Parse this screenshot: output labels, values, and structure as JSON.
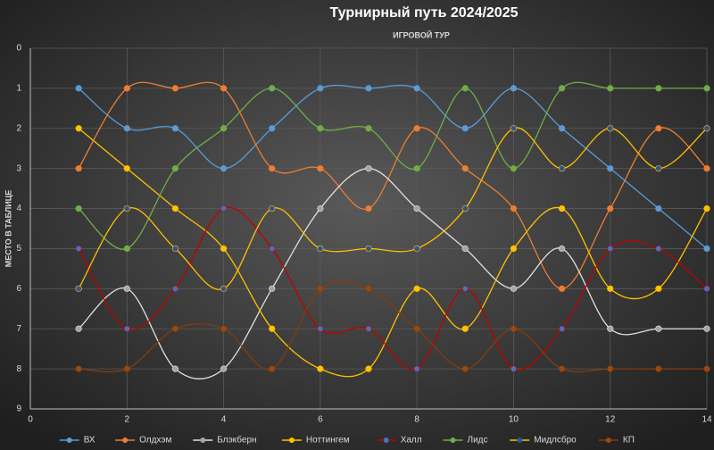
{
  "chart_data": {
    "type": "line",
    "title": "Турнирный путь 2024/2025",
    "x_label": "ИГРОВОЙ ТУР",
    "y_label": "МЕСТО В ТАБЛИЦЕ",
    "x": [
      1,
      2,
      3,
      4,
      5,
      6,
      7,
      8,
      9,
      10,
      11,
      12,
      13,
      14
    ],
    "xlim": [
      0,
      14
    ],
    "xticks": [
      0,
      2,
      4,
      6,
      8,
      10,
      12,
      14
    ],
    "ylim": [
      0,
      9
    ],
    "yticks": [
      0,
      1,
      2,
      3,
      4,
      5,
      6,
      7,
      8,
      9
    ],
    "y_reversed": true,
    "grid": true,
    "smooth": true,
    "legend": "bottom",
    "series": [
      {
        "name": "ВХ",
        "color": "#5b9bd5",
        "marker_color": "#5b9bd5",
        "values": [
          1,
          2,
          2,
          3,
          2,
          1,
          1,
          1,
          2,
          1,
          2,
          3,
          4,
          5
        ]
      },
      {
        "name": "Олдхэм",
        "color": "#ed7d31",
        "marker_color": "#ed7d31",
        "values": [
          3,
          1,
          1,
          1,
          3,
          3,
          4,
          2,
          3,
          4,
          6,
          4,
          2,
          3
        ]
      },
      {
        "name": "Блэкберн",
        "color": "#e0e0e0",
        "marker_color": "#a5a5a5",
        "values": [
          7,
          6,
          8,
          8,
          6,
          4,
          3,
          4,
          5,
          6,
          5,
          7,
          7,
          7
        ]
      },
      {
        "name": "Ноттингем",
        "color": "#ffc000",
        "marker_color": "#ffc000",
        "values": [
          2,
          3,
          4,
          5,
          7,
          8,
          8,
          6,
          7,
          5,
          4,
          6,
          6,
          4
        ]
      },
      {
        "name": "Халл",
        "color": "#c00000",
        "marker_color": "#4472c4",
        "values": [
          5,
          7,
          6,
          4,
          5,
          7,
          7,
          8,
          6,
          8,
          7,
          5,
          5,
          6
        ]
      },
      {
        "name": "Лидс",
        "color": "#70ad47",
        "marker_color": "#70ad47",
        "values": [
          4,
          5,
          3,
          2,
          1,
          2,
          2,
          3,
          1,
          3,
          1,
          1,
          1,
          1
        ]
      },
      {
        "name": "Мидлсбро",
        "color": "#ffc000",
        "marker_color": "#2f5597",
        "values": [
          6,
          4,
          5,
          6,
          4,
          5,
          5,
          5,
          4,
          2,
          3,
          2,
          3,
          2
        ]
      },
      {
        "name": "КП",
        "color": "#843c0c",
        "marker_color": "#9e480e",
        "values": [
          8,
          8,
          7,
          7,
          8,
          6,
          6,
          7,
          8,
          7,
          8,
          8,
          8,
          8
        ]
      }
    ]
  }
}
